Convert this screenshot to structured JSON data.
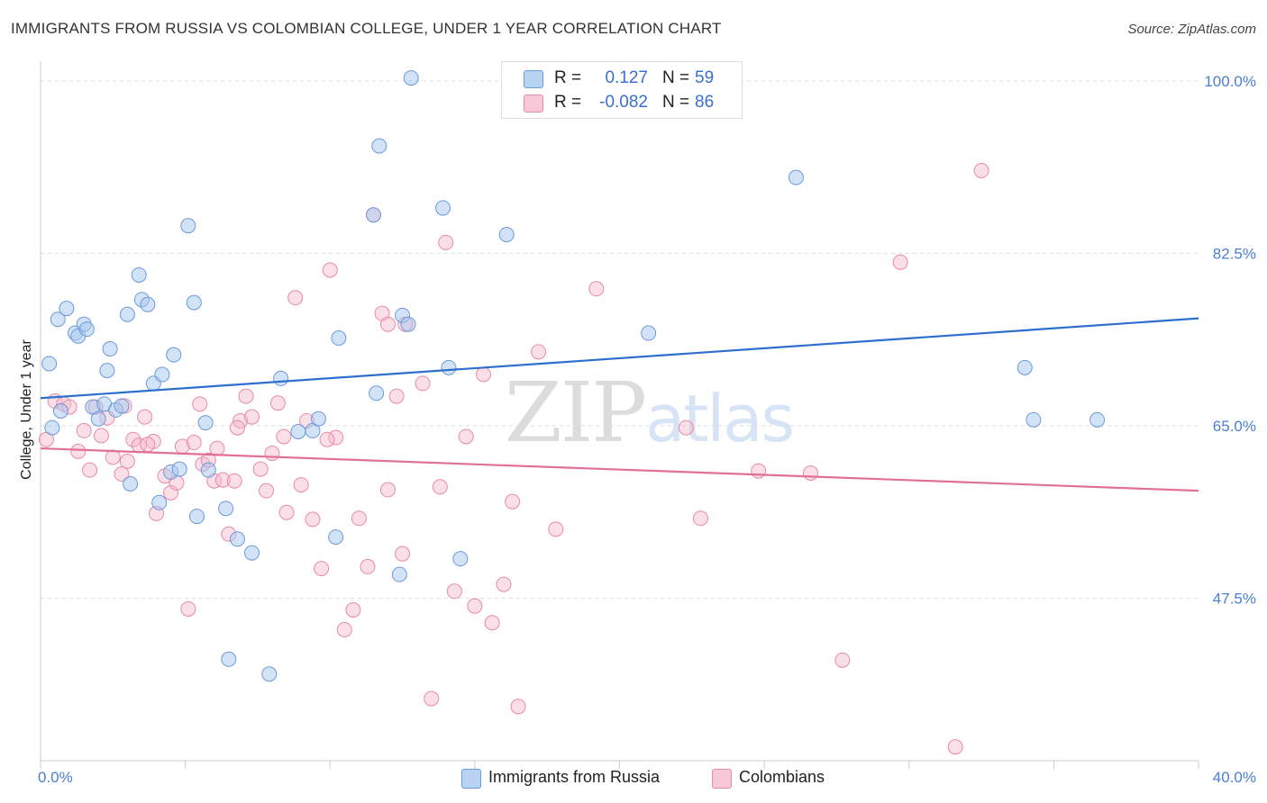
{
  "header": {
    "title": "IMMIGRANTS FROM RUSSIA VS COLOMBIAN COLLEGE, UNDER 1 YEAR CORRELATION CHART",
    "source": "Source: ZipAtlas.com"
  },
  "watermark": "ZIPatlas",
  "legend_top": {
    "rows": [
      {
        "r_label": "R =",
        "r_value": "0.127",
        "n_label": "N =",
        "n_value": "59"
      },
      {
        "r_label": "R =",
        "r_value": "-0.082",
        "n_label": "N =",
        "n_value": "86"
      }
    ]
  },
  "legend_bottom": {
    "items": [
      {
        "label": "Immigrants from Russia"
      },
      {
        "label": "Colombians"
      }
    ]
  },
  "colors": {
    "series1_fill": "#a8c8f0",
    "series1_stroke": "#6b9ad8",
    "series1_line": "#2d6fcc",
    "series2_fill": "#f5b8cb",
    "series2_stroke": "#e88aa8",
    "series2_line": "#e07099",
    "grid": "#dddddd",
    "tick_text": "#4a7fd0"
  },
  "chart_data": {
    "type": "scatter",
    "title": "IMMIGRANTS FROM RUSSIA VS COLOMBIAN COLLEGE, UNDER 1 YEAR CORRELATION CHART",
    "xlabel": "",
    "ylabel": "College, Under 1 year",
    "xlim": [
      0,
      40
    ],
    "ylim": [
      31,
      102
    ],
    "x_tick_labels": [
      "0.0%",
      "40.0%"
    ],
    "y_ticks": [
      100,
      82.5,
      65,
      47.5
    ],
    "y_tick_labels": [
      "100.0%",
      "82.5%",
      "65.0%",
      "47.5%"
    ],
    "grid": true,
    "legend_position": "top-center",
    "series": [
      {
        "name": "Immigrants from Russia",
        "regression": {
          "x": [
            0,
            40
          ],
          "y": [
            67.8,
            75.9
          ]
        },
        "points": [
          [
            0.3,
            71.3
          ],
          [
            0.4,
            64.8
          ],
          [
            0.6,
            75.8
          ],
          [
            0.7,
            66.5
          ],
          [
            0.9,
            76.9
          ],
          [
            1.2,
            74.4
          ],
          [
            1.3,
            74.1
          ],
          [
            1.5,
            75.3
          ],
          [
            1.6,
            74.8
          ],
          [
            1.8,
            66.9
          ],
          [
            2.0,
            65.7
          ],
          [
            2.2,
            67.2
          ],
          [
            2.3,
            70.6
          ],
          [
            2.4,
            72.8
          ],
          [
            2.6,
            66.6
          ],
          [
            2.8,
            67.0
          ],
          [
            3.0,
            76.3
          ],
          [
            3.1,
            59.1
          ],
          [
            3.4,
            80.3
          ],
          [
            3.5,
            77.8
          ],
          [
            3.7,
            77.3
          ],
          [
            3.9,
            69.3
          ],
          [
            4.1,
            57.2
          ],
          [
            4.2,
            70.2
          ],
          [
            4.5,
            60.3
          ],
          [
            4.6,
            72.2
          ],
          [
            4.8,
            60.6
          ],
          [
            5.1,
            85.3
          ],
          [
            5.3,
            77.5
          ],
          [
            5.4,
            55.8
          ],
          [
            5.7,
            65.3
          ],
          [
            5.8,
            60.5
          ],
          [
            6.4,
            56.6
          ],
          [
            6.5,
            41.3
          ],
          [
            6.8,
            53.5
          ],
          [
            7.3,
            52.1
          ],
          [
            7.9,
            39.8
          ],
          [
            8.3,
            69.8
          ],
          [
            8.9,
            64.4
          ],
          [
            9.4,
            64.5
          ],
          [
            9.6,
            65.7
          ],
          [
            10.2,
            53.7
          ],
          [
            10.3,
            73.9
          ],
          [
            11.5,
            86.4
          ],
          [
            11.6,
            68.3
          ],
          [
            11.7,
            93.4
          ],
          [
            12.4,
            49.9
          ],
          [
            12.5,
            76.2
          ],
          [
            12.7,
            75.3
          ],
          [
            12.8,
            100.3
          ],
          [
            13.9,
            87.1
          ],
          [
            14.1,
            70.9
          ],
          [
            14.5,
            51.5
          ],
          [
            16.1,
            84.4
          ],
          [
            21.0,
            74.4
          ],
          [
            26.1,
            90.2
          ],
          [
            34.0,
            70.9
          ],
          [
            34.3,
            65.6
          ],
          [
            36.5,
            65.6
          ]
        ]
      },
      {
        "name": "Colombians",
        "regression": {
          "x": [
            0,
            40
          ],
          "y": [
            62.7,
            58.4
          ]
        },
        "points": [
          [
            0.2,
            63.6
          ],
          [
            0.5,
            67.5
          ],
          [
            0.8,
            67.2
          ],
          [
            1.0,
            66.9
          ],
          [
            1.3,
            62.4
          ],
          [
            1.5,
            64.5
          ],
          [
            1.7,
            60.5
          ],
          [
            1.9,
            66.9
          ],
          [
            2.1,
            64.0
          ],
          [
            2.3,
            65.8
          ],
          [
            2.5,
            61.8
          ],
          [
            2.8,
            60.1
          ],
          [
            3.0,
            61.4
          ],
          [
            3.2,
            63.6
          ],
          [
            3.4,
            63.0
          ],
          [
            3.6,
            65.9
          ],
          [
            3.9,
            63.4
          ],
          [
            4.0,
            56.1
          ],
          [
            4.3,
            59.9
          ],
          [
            4.5,
            58.2
          ],
          [
            4.7,
            59.2
          ],
          [
            4.9,
            62.9
          ],
          [
            5.1,
            46.4
          ],
          [
            5.3,
            63.3
          ],
          [
            5.5,
            67.2
          ],
          [
            5.6,
            61.1
          ],
          [
            5.8,
            61.5
          ],
          [
            6.0,
            59.4
          ],
          [
            6.1,
            62.7
          ],
          [
            6.3,
            59.5
          ],
          [
            6.5,
            54.0
          ],
          [
            6.7,
            59.4
          ],
          [
            6.9,
            65.5
          ],
          [
            7.1,
            68.0
          ],
          [
            7.3,
            65.9
          ],
          [
            7.6,
            60.6
          ],
          [
            7.8,
            58.4
          ],
          [
            8.0,
            62.2
          ],
          [
            8.2,
            67.3
          ],
          [
            8.4,
            63.9
          ],
          [
            8.5,
            56.2
          ],
          [
            8.8,
            78.0
          ],
          [
            9.0,
            59.0
          ],
          [
            9.2,
            65.5
          ],
          [
            9.4,
            55.5
          ],
          [
            9.7,
            50.5
          ],
          [
            10.0,
            80.8
          ],
          [
            10.2,
            63.8
          ],
          [
            10.5,
            44.3
          ],
          [
            10.8,
            46.3
          ],
          [
            11.0,
            55.6
          ],
          [
            11.3,
            50.7
          ],
          [
            11.5,
            86.4
          ],
          [
            11.8,
            76.4
          ],
          [
            12.0,
            75.3
          ],
          [
            12.3,
            68.0
          ],
          [
            12.5,
            52.0
          ],
          [
            12.6,
            75.3
          ],
          [
            13.2,
            69.3
          ],
          [
            13.5,
            37.3
          ],
          [
            13.8,
            58.8
          ],
          [
            14.0,
            83.6
          ],
          [
            14.3,
            48.2
          ],
          [
            14.7,
            63.9
          ],
          [
            15.0,
            46.7
          ],
          [
            15.3,
            70.2
          ],
          [
            15.6,
            45.0
          ],
          [
            16.0,
            48.9
          ],
          [
            16.3,
            57.3
          ],
          [
            16.5,
            36.5
          ],
          [
            17.2,
            72.5
          ],
          [
            17.8,
            54.5
          ],
          [
            19.2,
            78.9
          ],
          [
            22.3,
            64.8
          ],
          [
            22.8,
            55.6
          ],
          [
            24.8,
            60.4
          ],
          [
            26.6,
            60.2
          ],
          [
            27.7,
            41.2
          ],
          [
            29.7,
            81.6
          ],
          [
            31.6,
            32.4
          ],
          [
            32.5,
            90.9
          ],
          [
            2.9,
            67.0
          ],
          [
            3.7,
            63.1
          ],
          [
            6.8,
            64.8
          ],
          [
            9.9,
            63.6
          ],
          [
            12.0,
            58.5
          ]
        ]
      }
    ]
  }
}
